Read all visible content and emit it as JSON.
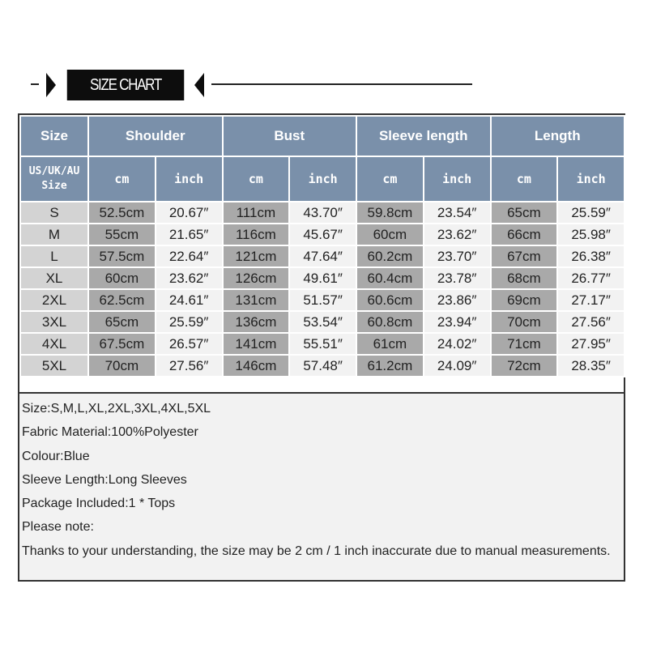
{
  "title": "SIZE CHART",
  "header": {
    "size": "Size",
    "groups": [
      "Shoulder",
      "Bust",
      "Sleeve length",
      "Length"
    ],
    "sub_size": [
      "US/UK/AU",
      "Size"
    ],
    "cm": "cm",
    "inch": "inch"
  },
  "rows": [
    [
      "S",
      "52.5cm",
      "20.67″",
      "111cm",
      "43.70″",
      "59.8cm",
      "23.54″",
      "65cm",
      "25.59″"
    ],
    [
      "M",
      "55cm",
      "21.65″",
      "116cm",
      "45.67″",
      "60cm",
      "23.62″",
      "66cm",
      "25.98″"
    ],
    [
      "L",
      "57.5cm",
      "22.64″",
      "121cm",
      "47.64″",
      "60.2cm",
      "23.70″",
      "67cm",
      "26.38″"
    ],
    [
      "XL",
      "60cm",
      "23.62″",
      "126cm",
      "49.61″",
      "60.4cm",
      "23.78″",
      "68cm",
      "26.77″"
    ],
    [
      "2XL",
      "62.5cm",
      "24.61″",
      "131cm",
      "51.57″",
      "60.6cm",
      "23.86″",
      "69cm",
      "27.17″"
    ],
    [
      "3XL",
      "65cm",
      "25.59″",
      "136cm",
      "53.54″",
      "60.8cm",
      "23.94″",
      "70cm",
      "27.56″"
    ],
    [
      "4XL",
      "67.5cm",
      "26.57″",
      "141cm",
      "55.51″",
      "61cm",
      "24.02″",
      "71cm",
      "27.95″"
    ],
    [
      "5XL",
      "70cm",
      "27.56″",
      "146cm",
      "57.48″",
      "61.2cm",
      "24.09″",
      "72cm",
      "28.35″"
    ]
  ],
  "notes": [
    "Size:S,M,L,XL,2XL,3XL,4XL,5XL",
    "Fabric Material:100%Polyester",
    "Colour:Blue",
    "Sleeve Length:Long Sleeves",
    "Package Included:1 * Tops",
    "Please note:",
    "Thanks to your understanding, the size may be 2 cm / 1 inch inaccurate due to manual measurements."
  ],
  "colors": {
    "header": "#7a90aa",
    "size_col": "#d3d3d3",
    "cm_col": "#a9a9a9",
    "inch_col": "#f2f2f2"
  }
}
